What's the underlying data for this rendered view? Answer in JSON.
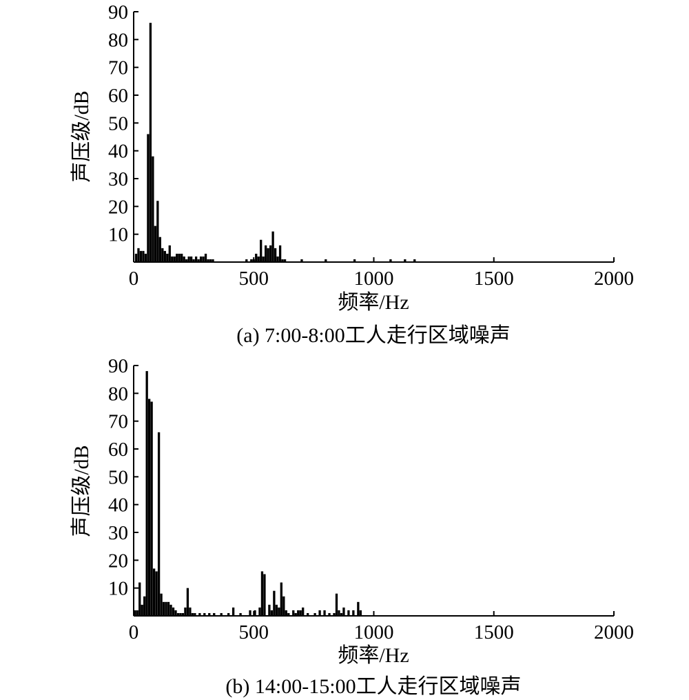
{
  "chart_data": [
    {
      "type": "bar",
      "title": "(a) 7:00-8:00工人走行区域噪声",
      "xlabel": "频率/Hz",
      "ylabel": "声压级/dB",
      "xlim": [
        0,
        2000
      ],
      "ylim": [
        0,
        90
      ],
      "xticks": [
        0,
        500,
        1000,
        1500,
        2000
      ],
      "yticks": [
        10,
        20,
        30,
        40,
        50,
        60,
        70,
        80,
        90
      ],
      "grid": false,
      "x": [
        10,
        20,
        30,
        40,
        50,
        60,
        70,
        80,
        90,
        100,
        110,
        120,
        130,
        140,
        150,
        160,
        170,
        180,
        190,
        200,
        210,
        220,
        230,
        240,
        250,
        260,
        270,
        280,
        290,
        300,
        310,
        320,
        330,
        470,
        490,
        500,
        510,
        520,
        530,
        540,
        550,
        560,
        570,
        580,
        590,
        600,
        610,
        620,
        630,
        700,
        800,
        920,
        1070,
        1130,
        1170
      ],
      "values": [
        3,
        5,
        4,
        4,
        3,
        46,
        86,
        38,
        13,
        22,
        9,
        5,
        4,
        3,
        6,
        2,
        2,
        3,
        3,
        3,
        2,
        1,
        2,
        2,
        1,
        2,
        1,
        2,
        2,
        3,
        1,
        1,
        1,
        1,
        1,
        1,
        3,
        2,
        8,
        2,
        6,
        5,
        6,
        11,
        5,
        2,
        6,
        1,
        1,
        1,
        1,
        1,
        1,
        1,
        1
      ]
    },
    {
      "type": "bar",
      "title": "(b) 14:00-15:00工人走行区域噪声",
      "xlabel": "频率/Hz",
      "ylabel": "声压级/dB",
      "xlim": [
        0,
        2000
      ],
      "ylim": [
        0,
        90
      ],
      "xticks": [
        0,
        500,
        1000,
        1500,
        2000
      ],
      "yticks": [
        10,
        20,
        30,
        40,
        50,
        60,
        70,
        80,
        90
      ],
      "grid": false,
      "x": [
        5,
        15,
        25,
        35,
        45,
        55,
        65,
        75,
        85,
        95,
        105,
        115,
        125,
        135,
        145,
        155,
        165,
        175,
        185,
        195,
        205,
        215,
        225,
        235,
        245,
        255,
        275,
        295,
        315,
        335,
        365,
        395,
        415,
        445,
        485,
        505,
        525,
        535,
        545,
        565,
        575,
        585,
        595,
        605,
        615,
        625,
        635,
        645,
        665,
        675,
        685,
        695,
        705,
        725,
        755,
        775,
        795,
        815,
        835,
        845,
        855,
        865,
        875,
        895,
        915,
        935,
        945
      ],
      "values": [
        2,
        2,
        12,
        4,
        7,
        88,
        78,
        77,
        17,
        16,
        66,
        8,
        5,
        5,
        5,
        4,
        3,
        2,
        1,
        1,
        1,
        3,
        10,
        3,
        1,
        1,
        1,
        1,
        1,
        1,
        1,
        1,
        3,
        1,
        2,
        2,
        3,
        16,
        15,
        4,
        2,
        9,
        4,
        3,
        12,
        7,
        2,
        1,
        2,
        1,
        2,
        2,
        3,
        1,
        1,
        2,
        2,
        1,
        1,
        8,
        2,
        1,
        3,
        2,
        2,
        5,
        2
      ]
    }
  ]
}
